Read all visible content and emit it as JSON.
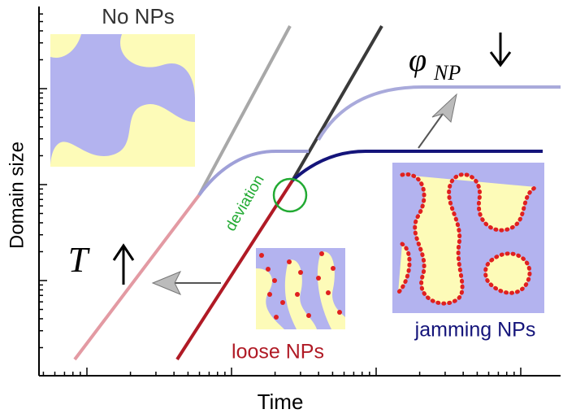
{
  "axes": {
    "x_label": "Time",
    "y_label": "Domain size"
  },
  "labels": {
    "no_nps": "No NPs",
    "phi": "φ",
    "phi_subscript": "NP",
    "deviation": "deviation",
    "temperature": "T",
    "loose": "loose NPs",
    "jamming": "jamming NPs"
  }
}
